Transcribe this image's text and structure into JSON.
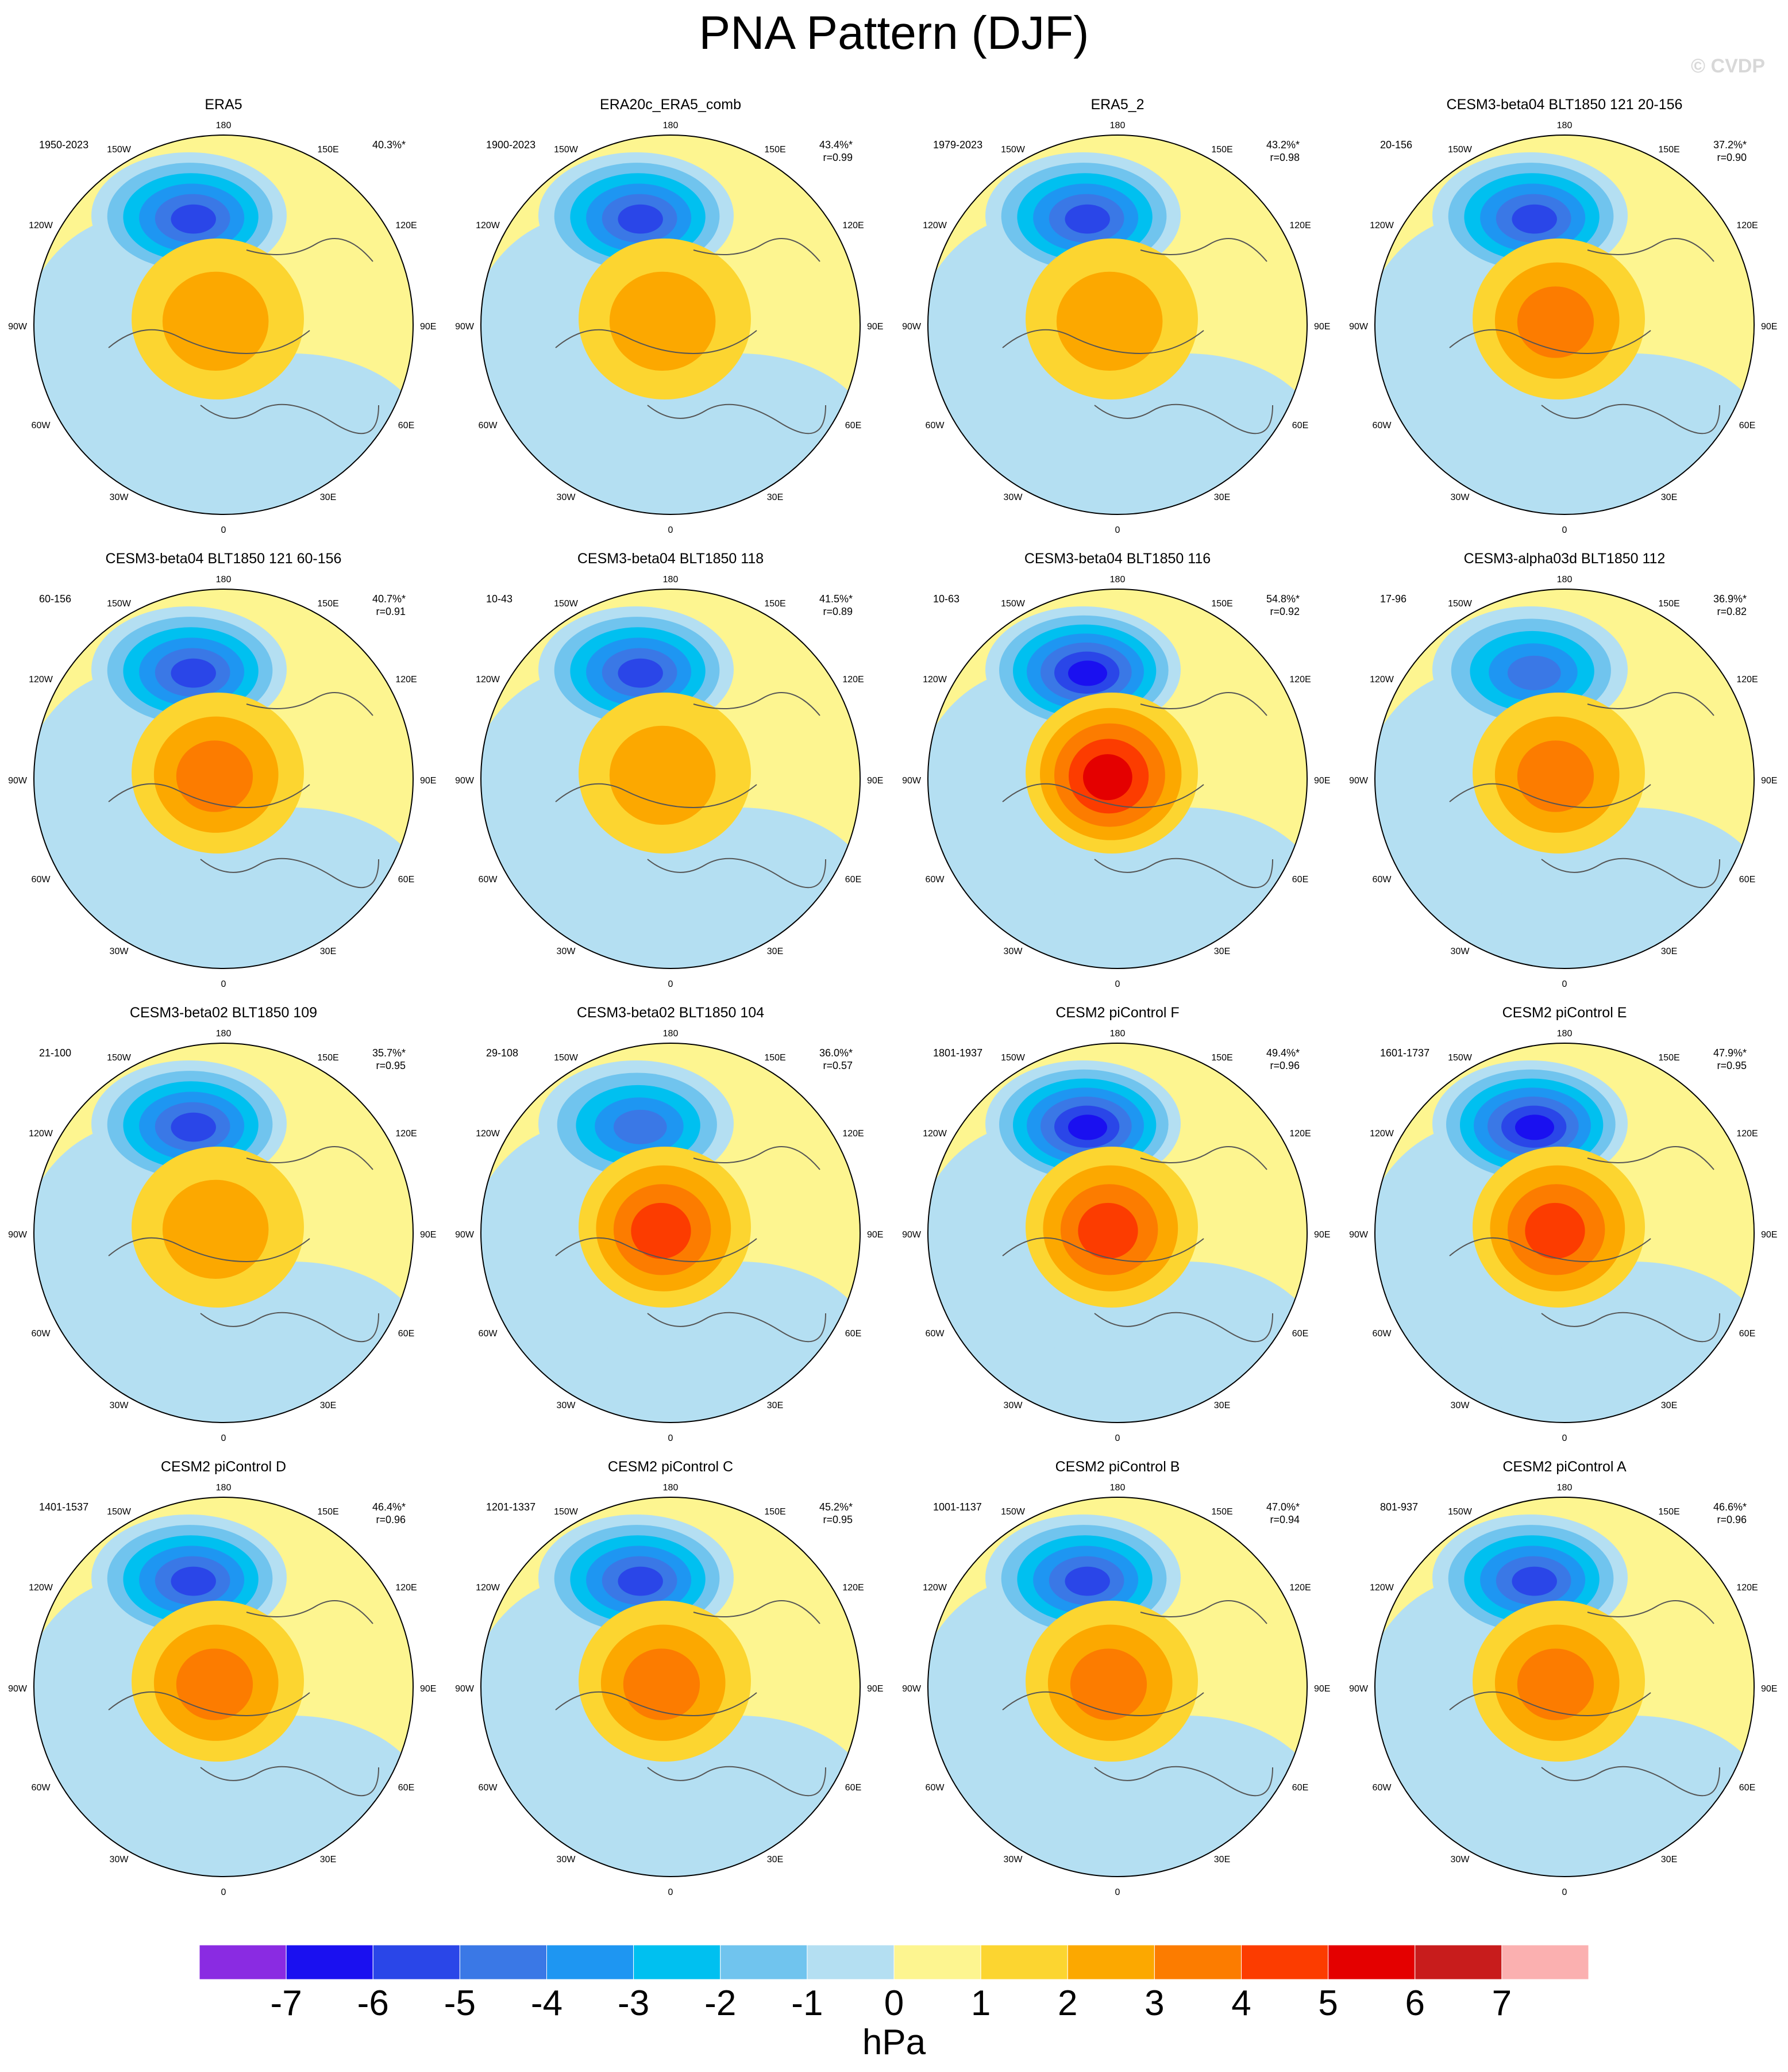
{
  "title": "PNA Pattern (DJF)",
  "watermark": "© CVDP",
  "lon_labels": {
    "l180": "180",
    "l150w": "150W",
    "l150e": "150E",
    "l120w": "120W",
    "l120e": "120E",
    "l90w": "90W",
    "l90e": "90E",
    "l60w": "60W",
    "l60e": "60E",
    "l30w": "30W",
    "l30e": "30E",
    "l0": "0"
  },
  "panels": [
    {
      "title": "ERA5",
      "years": "1950-2023",
      "pct": "40.3%*",
      "r": "",
      "low": -6,
      "high": 2
    },
    {
      "title": "ERA20c_ERA5_comb",
      "years": "1900-2023",
      "pct": "43.4%*",
      "r": "r=0.99",
      "low": -6,
      "high": 2
    },
    {
      "title": "ERA5_2",
      "years": "1979-2023",
      "pct": "43.2%*",
      "r": "r=0.98",
      "low": -6,
      "high": 2
    },
    {
      "title": "CESM3-beta04 BLT1850 121 20-156",
      "years": "20-156",
      "pct": "37.2%*",
      "r": "r=0.90",
      "low": -6,
      "high": 3
    },
    {
      "title": "CESM3-beta04 BLT1850 121 60-156",
      "years": "60-156",
      "pct": "40.7%*",
      "r": "r=0.91",
      "low": -6,
      "high": 3
    },
    {
      "title": "CESM3-beta04 BLT1850 118",
      "years": "10-43",
      "pct": "41.5%*",
      "r": "r=0.89",
      "low": -6,
      "high": 2
    },
    {
      "title": "CESM3-beta04 BLT1850 116",
      "years": "10-63",
      "pct": "54.8%*",
      "r": "r=0.92",
      "low": -7,
      "high": 5
    },
    {
      "title": "CESM3-alpha03d BLT1850 112",
      "years": "17-96",
      "pct": "36.9%*",
      "r": "r=0.82",
      "low": -5,
      "high": 3
    },
    {
      "title": "CESM3-beta02 BLT1850 109",
      "years": "21-100",
      "pct": "35.7%*",
      "r": "r=0.95",
      "low": -6,
      "high": 2
    },
    {
      "title": "CESM3-beta02 BLT1850 104",
      "years": "29-108",
      "pct": "36.0%*",
      "r": "r=0.57",
      "low": -5,
      "high": 4
    },
    {
      "title": "CESM2 piControl F",
      "years": "1801-1937",
      "pct": "49.4%*",
      "r": "r=0.96",
      "low": -7,
      "high": 4
    },
    {
      "title": "CESM2 piControl E",
      "years": "1601-1737",
      "pct": "47.9%*",
      "r": "r=0.95",
      "low": -7,
      "high": 4
    },
    {
      "title": "CESM2 piControl D",
      "years": "1401-1537",
      "pct": "46.4%*",
      "r": "r=0.96",
      "low": -6,
      "high": 3
    },
    {
      "title": "CESM2 piControl C",
      "years": "1201-1337",
      "pct": "45.2%*",
      "r": "r=0.95",
      "low": -6,
      "high": 3
    },
    {
      "title": "CESM2 piControl B",
      "years": "1001-1137",
      "pct": "47.0%*",
      "r": "r=0.94",
      "low": -6,
      "high": 3
    },
    {
      "title": "CESM2 piControl A",
      "years": "801-937",
      "pct": "46.6%*",
      "r": "r=0.96",
      "low": -6,
      "high": 3
    }
  ],
  "colorbar": {
    "units": "hPa",
    "labels": [
      "-7",
      "-6",
      "-5",
      "-4",
      "-3",
      "-2",
      "-1",
      "0",
      "1",
      "2",
      "3",
      "4",
      "5",
      "6",
      "7"
    ],
    "colors": [
      "#8a2be2",
      "#1a10f0",
      "#2a46e8",
      "#3a78e6",
      "#1e96f2",
      "#00c0f0",
      "#70c4ee",
      "#b4dff2",
      "#fdf590",
      "#fcd530",
      "#fca800",
      "#fc7c00",
      "#fc3c00",
      "#e40000",
      "#c81c1c",
      "#fbb0b0"
    ]
  }
}
